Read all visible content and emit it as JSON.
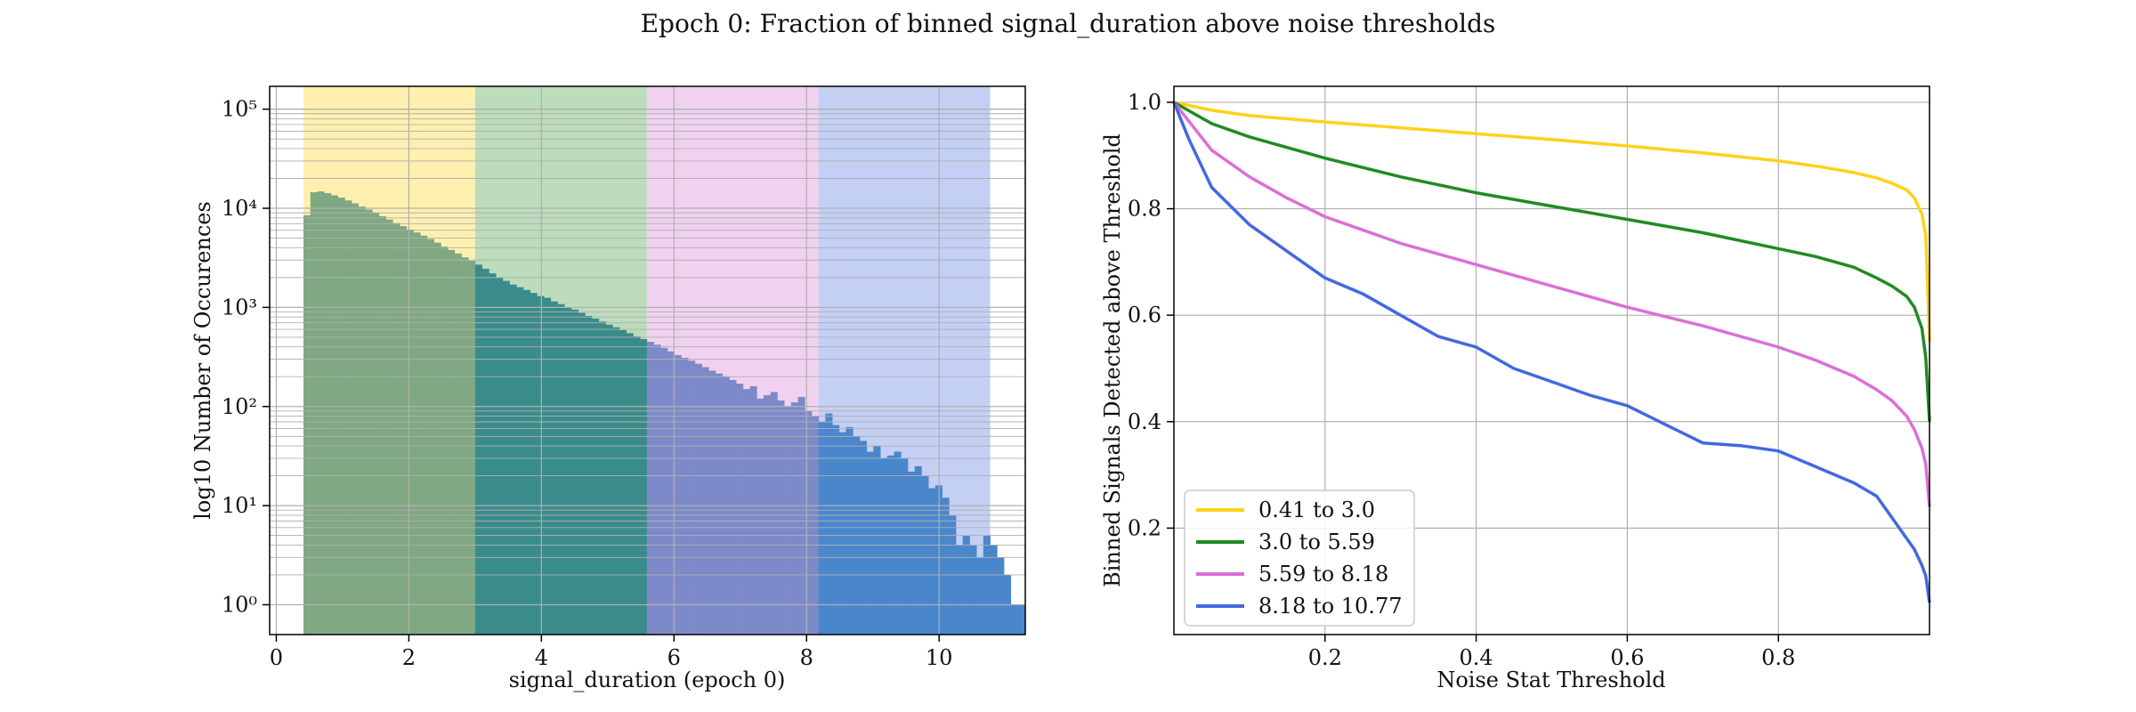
{
  "figure": {
    "suptitle": "Epoch 0: Fraction of binned signal_duration above noise thresholds"
  },
  "chart_data": [
    {
      "type": "bar",
      "name": "histogram",
      "xlabel": "signal_duration (epoch 0)",
      "ylabel": "log10 Number of Occurences",
      "yscale": "log",
      "xlim": [
        -0.1,
        11.3
      ],
      "ylim": [
        0.5,
        170000
      ],
      "xticks": [
        "0",
        "2",
        "4",
        "6",
        "8",
        "10"
      ],
      "xtick_values": [
        0,
        2,
        4,
        6,
        8,
        10
      ],
      "yticks": [
        "10⁰",
        "10¹",
        "10²",
        "10³",
        "10⁴",
        "10⁵"
      ],
      "ytick_values": [
        1,
        10,
        100,
        1000,
        10000,
        100000
      ],
      "grid": true,
      "bands": [
        {
          "from": 0.41,
          "to": 3.0,
          "color": "#fff0b0"
        },
        {
          "from": 3.0,
          "to": 5.59,
          "color": "#bcdcbc"
        },
        {
          "from": 5.59,
          "to": 8.18,
          "color": "#f0d2f0"
        },
        {
          "from": 8.18,
          "to": 10.77,
          "color": "#c3cff3"
        }
      ],
      "bin_start": 0.41,
      "bin_width": 0.1036,
      "counts": [
        8500,
        14500,
        14800,
        14200,
        13500,
        12800,
        12000,
        11200,
        10400,
        9700,
        9000,
        8300,
        7700,
        7100,
        6600,
        6100,
        5700,
        5300,
        4900,
        4500,
        4100,
        3800,
        3500,
        3200,
        2950,
        2700,
        2450,
        2200,
        2000,
        1850,
        1700,
        1600,
        1500,
        1400,
        1300,
        1250,
        1150,
        1080,
        1000,
        950,
        880,
        820,
        770,
        720,
        670,
        630,
        590,
        550,
        510,
        480,
        450,
        420,
        390,
        360,
        330,
        310,
        290,
        270,
        250,
        230,
        215,
        200,
        185,
        170,
        150,
        160,
        120,
        130,
        140,
        115,
        100,
        110,
        125,
        90,
        80,
        70,
        85,
        65,
        55,
        62,
        50,
        45,
        35,
        40,
        30,
        32,
        35,
        30,
        22,
        25,
        20,
        15,
        16,
        12,
        8,
        4,
        5,
        4,
        3,
        5,
        4,
        3,
        2,
        1,
        1
      ]
    },
    {
      "type": "line",
      "name": "threshold-curves",
      "xlabel": "Noise Stat Threshold",
      "ylabel": "Binned Signals Detected above Threshold",
      "xlim": [
        0.0,
        1.0
      ],
      "ylim": [
        0.0,
        1.03
      ],
      "xticks": [
        "0.2",
        "0.4",
        "0.6",
        "0.8"
      ],
      "xtick_values": [
        0.2,
        0.4,
        0.6,
        0.8
      ],
      "yticks": [
        "0.2",
        "0.4",
        "0.6",
        "0.8",
        "1.0"
      ],
      "ytick_values": [
        0.2,
        0.4,
        0.6,
        0.8,
        1.0
      ],
      "grid": true,
      "legend_position": "lower-left",
      "series": [
        {
          "name": "0.41 to 3.0",
          "color": "#ffd21a",
          "x": [
            0,
            0.05,
            0.1,
            0.2,
            0.3,
            0.4,
            0.5,
            0.6,
            0.7,
            0.8,
            0.85,
            0.9,
            0.93,
            0.95,
            0.97,
            0.98,
            0.99,
            0.995,
            1.0
          ],
          "y": [
            1.0,
            0.985,
            0.975,
            0.963,
            0.952,
            0.941,
            0.93,
            0.918,
            0.905,
            0.89,
            0.88,
            0.868,
            0.858,
            0.848,
            0.835,
            0.82,
            0.79,
            0.75,
            0.55
          ]
        },
        {
          "name": "3.0 to 5.59",
          "color": "#228b22",
          "x": [
            0,
            0.05,
            0.1,
            0.2,
            0.3,
            0.4,
            0.5,
            0.6,
            0.7,
            0.8,
            0.85,
            0.9,
            0.93,
            0.95,
            0.97,
            0.98,
            0.99,
            0.995,
            1.0
          ],
          "y": [
            1.0,
            0.96,
            0.935,
            0.895,
            0.86,
            0.83,
            0.805,
            0.78,
            0.755,
            0.725,
            0.71,
            0.69,
            0.67,
            0.655,
            0.635,
            0.615,
            0.575,
            0.52,
            0.4
          ]
        },
        {
          "name": "5.59 to 8.18",
          "color": "#da70d6",
          "x": [
            0,
            0.05,
            0.1,
            0.15,
            0.2,
            0.3,
            0.4,
            0.5,
            0.6,
            0.7,
            0.8,
            0.85,
            0.9,
            0.93,
            0.95,
            0.97,
            0.98,
            0.99,
            0.995,
            1.0
          ],
          "y": [
            1.0,
            0.91,
            0.86,
            0.82,
            0.785,
            0.735,
            0.695,
            0.655,
            0.615,
            0.58,
            0.54,
            0.515,
            0.485,
            0.46,
            0.44,
            0.41,
            0.385,
            0.35,
            0.32,
            0.24
          ]
        },
        {
          "name": "8.18 to 10.77",
          "color": "#4169e1",
          "x": [
            0,
            0.02,
            0.05,
            0.1,
            0.15,
            0.2,
            0.25,
            0.3,
            0.35,
            0.4,
            0.45,
            0.5,
            0.55,
            0.6,
            0.65,
            0.7,
            0.75,
            0.8,
            0.85,
            0.9,
            0.93,
            0.95,
            0.97,
            0.98,
            0.99,
            0.995,
            1.0
          ],
          "y": [
            1.0,
            0.93,
            0.84,
            0.77,
            0.72,
            0.67,
            0.64,
            0.6,
            0.56,
            0.54,
            0.5,
            0.475,
            0.45,
            0.43,
            0.395,
            0.36,
            0.355,
            0.345,
            0.315,
            0.285,
            0.26,
            0.22,
            0.18,
            0.16,
            0.13,
            0.11,
            0.06
          ]
        }
      ]
    }
  ]
}
